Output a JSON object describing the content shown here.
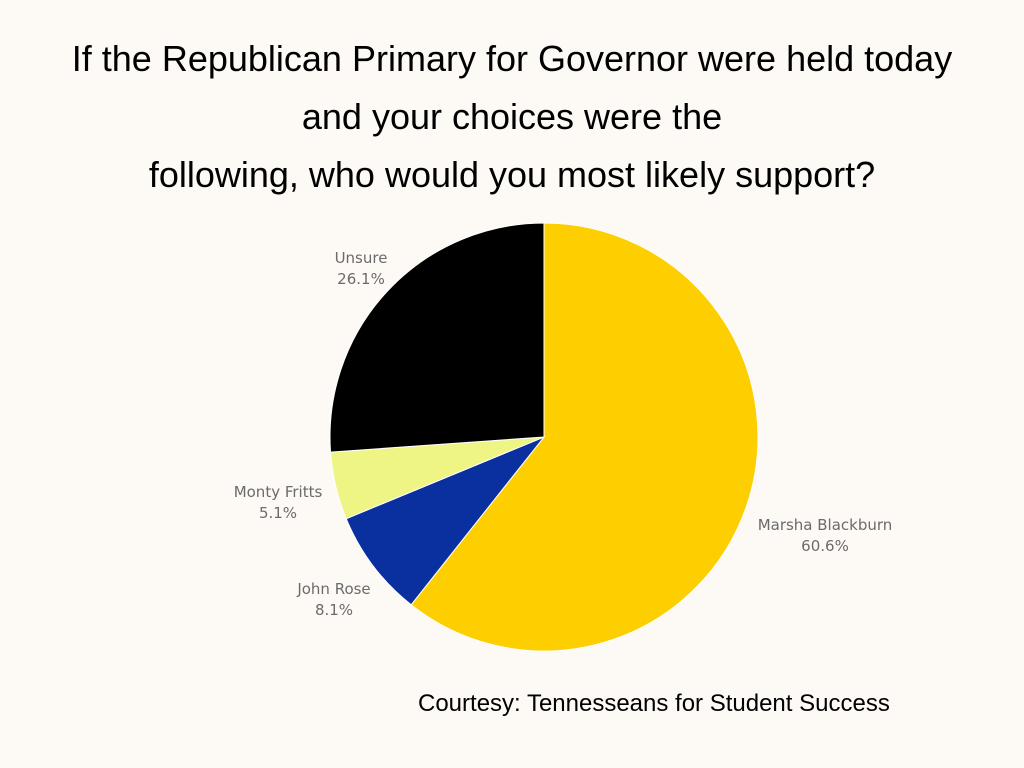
{
  "chart_data": {
    "type": "pie",
    "title_lines": [
      "If the Republican Primary for Governor were held today",
      "and your choices were the",
      "following, who would you most likely support?"
    ],
    "slices": [
      {
        "name": "Marsha Blackburn",
        "value": 60.6,
        "label": "60.6%",
        "color": "#fecf00"
      },
      {
        "name": "John Rose",
        "value": 8.1,
        "label": "8.1%",
        "color": "#0a2f9e"
      },
      {
        "name": "Monty Fritts",
        "value": 5.1,
        "label": "5.1%",
        "color": "#eef585"
      },
      {
        "name": "Unsure",
        "value": 26.1,
        "label": "26.1%",
        "color": "#000000"
      }
    ],
    "start": "12 o'clock",
    "direction": "clockwise"
  },
  "credit": "Courtesy: Tennesseans for Student Success"
}
